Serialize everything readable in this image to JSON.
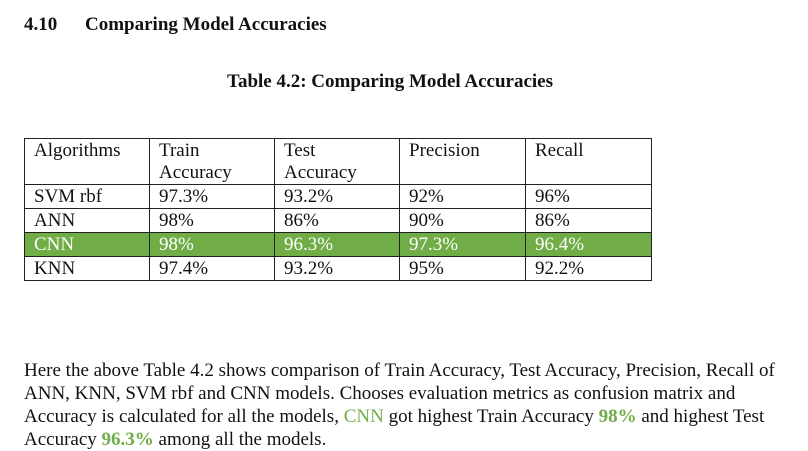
{
  "section": {
    "number": "4.10",
    "title": "Comparing Model Accuracies"
  },
  "table_caption": "Table 4.2:  Comparing Model Accuracies",
  "table": {
    "headers": [
      "Algorithms",
      "Train Accuracy",
      "Test Accuracy",
      "Precision",
      "Recall"
    ],
    "rows": [
      [
        "SVM rbf",
        "97.3%",
        "93.2%",
        "92%",
        "96%"
      ],
      [
        "ANN",
        "98%",
        "86%",
        "90%",
        "86%"
      ],
      [
        "CNN",
        "98%",
        "96.3%",
        "97.3%",
        "96.4%"
      ],
      [
        "KNN",
        "97.4%",
        "93.2%",
        "95%",
        "92.2%"
      ]
    ],
    "highlight_color": "#70ad47",
    "highlight_text_color": "#ffffff"
  },
  "paragraph": {
    "part1": "Here the above Table 4.2 shows comparison of Train Accuracy, Test Accuracy, Precision, Recall of ANN, KNN, SVM rbf and CNN models. Chooses evaluation metrics as confusion matrix and Accuracy is calculated for all the models, ",
    "cnn": "CNN",
    "part2": " got highest Train Accuracy ",
    "train_value": "98%",
    "part3": " and highest Test Accuracy ",
    "test_value": "96.3%",
    "part4": " among all the models.",
    "accent_color": "#70ad47"
  }
}
